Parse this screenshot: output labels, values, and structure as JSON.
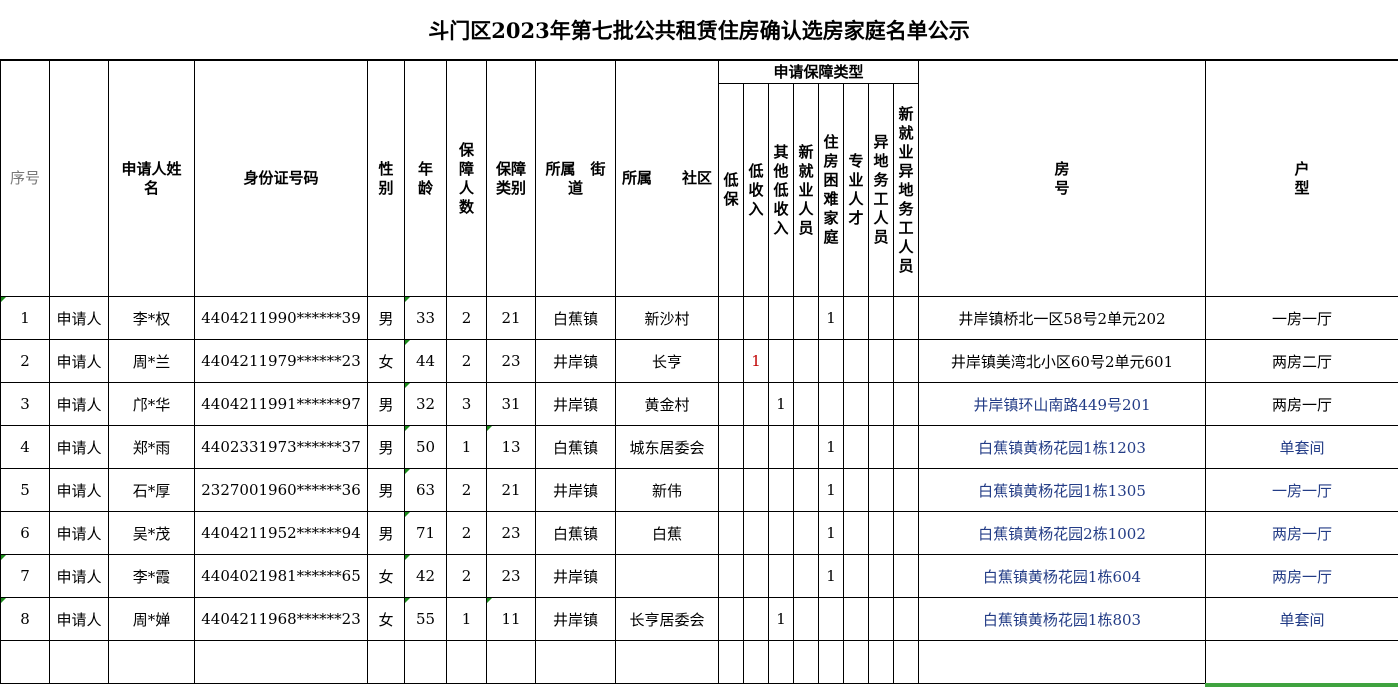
{
  "title": "斗门区2023年第七批公共租赁住房确认选房家庭名单公示",
  "headers": {
    "seq": "序号",
    "blank": "",
    "name": "申请人姓名",
    "id": "身份证号码",
    "sex": "性别",
    "age": "年龄",
    "count": "保障人数",
    "category": "保障类别",
    "street": "所属　街道",
    "community": "所属　　社区",
    "type_group": "申请保障类型",
    "types": [
      "低保",
      "低收入",
      "其他低收入",
      "新就业人员",
      "住房困难家庭",
      "专业人才",
      "异地务工人员",
      "新就业异地务工人员"
    ],
    "room": "房号",
    "layout": "户型"
  },
  "rows": [
    {
      "seq": "1",
      "role": "申请人",
      "name": "李*权",
      "id": "4404211990******39",
      "sex": "男",
      "age": "33",
      "count": "2",
      "category": "21",
      "street": "白蕉镇",
      "community": "新沙村",
      "flags": [
        "",
        "",
        "",
        "",
        "1",
        "",
        "",
        ""
      ],
      "room": "井岸镇桥北一区58号2单元202",
      "layout": "一房一厅"
    },
    {
      "seq": "2",
      "role": "申请人",
      "name": "周*兰",
      "id": "4404211979******23",
      "sex": "女",
      "age": "44",
      "count": "2",
      "category": "23",
      "street": "井岸镇",
      "community": "长亨",
      "flags": [
        "",
        "1",
        "",
        "",
        "",
        "",
        "",
        ""
      ],
      "room": "井岸镇美湾北小区60号2单元601",
      "layout": "两房二厅"
    },
    {
      "seq": "3",
      "role": "申请人",
      "name": "邝*华",
      "id": "4404211991******97",
      "sex": "男",
      "age": "32",
      "count": "3",
      "category": "31",
      "street": "井岸镇",
      "community": "黄金村",
      "flags": [
        "",
        "",
        "1",
        "",
        "",
        "",
        "",
        ""
      ],
      "room": "井岸镇环山南路449号201",
      "layout": "两房一厅"
    },
    {
      "seq": "4",
      "role": "申请人",
      "name": "郑*雨",
      "id": "4402331973******37",
      "sex": "男",
      "age": "50",
      "count": "1",
      "category": "13",
      "street": "白蕉镇",
      "community": "城东居委会",
      "flags": [
        "",
        "",
        "",
        "",
        "1",
        "",
        "",
        ""
      ],
      "room": "白蕉镇黄杨花园1栋1203",
      "layout": "单套间"
    },
    {
      "seq": "5",
      "role": "申请人",
      "name": "石*厚",
      "id": "2327001960******36",
      "sex": "男",
      "age": "63",
      "count": "2",
      "category": "21",
      "street": "井岸镇",
      "community": "新伟",
      "flags": [
        "",
        "",
        "",
        "",
        "1",
        "",
        "",
        ""
      ],
      "room": "白蕉镇黄杨花园1栋1305",
      "layout": "一房一厅"
    },
    {
      "seq": "6",
      "role": "申请人",
      "name": "吴*茂",
      "id": "4404211952******94",
      "sex": "男",
      "age": "71",
      "count": "2",
      "category": "23",
      "street": "白蕉镇",
      "community": "白蕉",
      "flags": [
        "",
        "",
        "",
        "",
        "1",
        "",
        "",
        ""
      ],
      "room": "白蕉镇黄杨花园2栋1002",
      "layout": "两房一厅"
    },
    {
      "seq": "7",
      "role": "申请人",
      "name": "李*霞",
      "id": "4404021981******65",
      "sex": "女",
      "age": "42",
      "count": "2",
      "category": "23",
      "street": "井岸镇",
      "community": "",
      "flags": [
        "",
        "",
        "",
        "",
        "1",
        "",
        "",
        ""
      ],
      "room": "白蕉镇黄杨花园1栋604",
      "layout": "两房一厅"
    },
    {
      "seq": "8",
      "role": "申请人",
      "name": "周*婵",
      "id": "4404211968******23",
      "sex": "女",
      "age": "55",
      "count": "1",
      "category": "11",
      "street": "井岸镇",
      "community": "长亨居委会",
      "flags": [
        "",
        "",
        "1",
        "",
        "",
        "",
        "",
        ""
      ],
      "room": "白蕉镇黄杨花园1栋803",
      "layout": "单套间"
    }
  ],
  "colors": {
    "text": "#000000",
    "room_text": "#233c86",
    "flag_red": "#c00000",
    "error_marker": "#1a8a1a",
    "selection": "#3fa33f"
  }
}
